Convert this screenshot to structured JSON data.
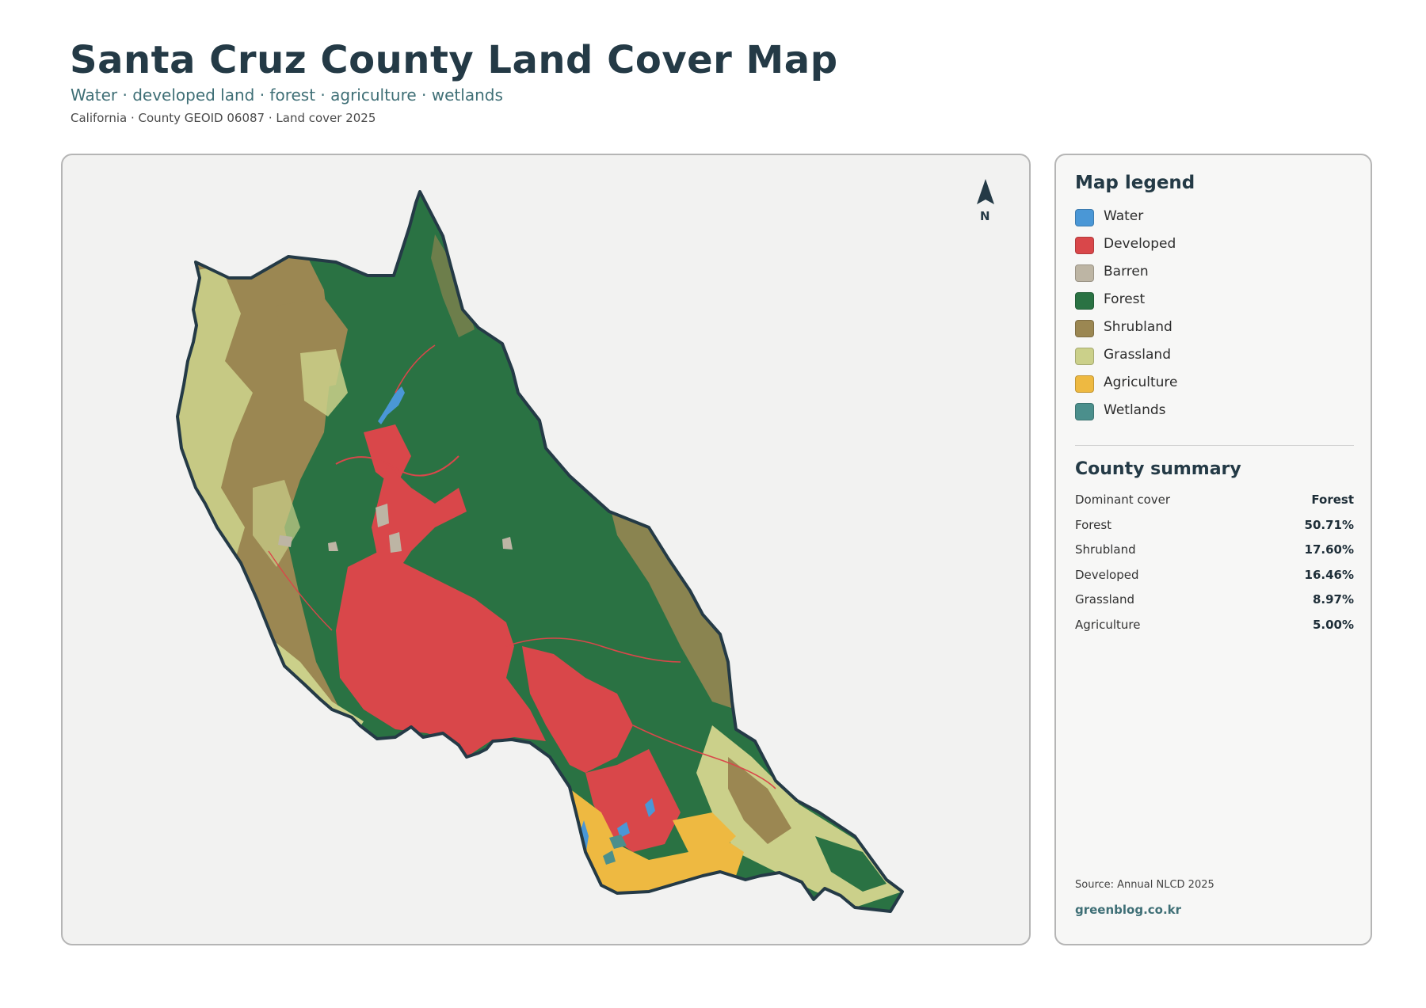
{
  "header": {
    "title": "Santa Cruz County Land Cover Map",
    "subtitle": "Water · developed land · forest · agriculture · wetlands",
    "meta": "California · County GEOID 06087 · Land cover 2025"
  },
  "map": {
    "north_label": "N",
    "colors": {
      "water": "#4a97d6",
      "developed": "#d9474a",
      "barren": "#bdb5a4",
      "forest": "#2a7243",
      "shrubland": "#9b8752",
      "grassland": "#cbd08a",
      "agriculture": "#eeb941",
      "wetlands": "#4b8f8c",
      "outline": "#243a46"
    }
  },
  "legend": {
    "title": "Map legend",
    "items": [
      {
        "label": "Water",
        "color": "#4a97d6"
      },
      {
        "label": "Developed",
        "color": "#d9474a"
      },
      {
        "label": "Barren",
        "color": "#bdb5a4"
      },
      {
        "label": "Forest",
        "color": "#2a7243"
      },
      {
        "label": "Shrubland",
        "color": "#9b8752"
      },
      {
        "label": "Grassland",
        "color": "#cbd08a"
      },
      {
        "label": "Agriculture",
        "color": "#eeb941"
      },
      {
        "label": "Wetlands",
        "color": "#4b8f8c"
      }
    ]
  },
  "summary": {
    "title": "County summary",
    "rows": [
      {
        "key": "Dominant cover",
        "value": "Forest"
      },
      {
        "key": "Forest",
        "value": "50.71%"
      },
      {
        "key": "Shrubland",
        "value": "17.60%"
      },
      {
        "key": "Developed",
        "value": "16.46%"
      },
      {
        "key": "Grassland",
        "value": "8.97%"
      },
      {
        "key": "Agriculture",
        "value": "5.00%"
      }
    ]
  },
  "footer": {
    "source": "Source: Annual NLCD 2025",
    "site": "greenblog.co.kr"
  }
}
